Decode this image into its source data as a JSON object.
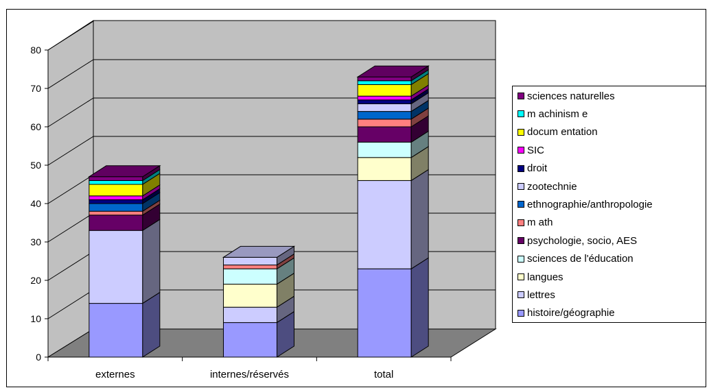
{
  "chart_data": {
    "type": "bar",
    "stacked": true,
    "three_d": true,
    "categories": [
      "externes",
      "internes/réservés",
      "total"
    ],
    "ylim": [
      0,
      80
    ],
    "yticks": [
      "0",
      "10",
      "20",
      "30",
      "40",
      "50",
      "60",
      "70",
      "80"
    ],
    "grid": true,
    "legend_position": "right",
    "series": [
      {
        "name": "histoire/géographie",
        "color": "#9999ff",
        "values": [
          14,
          9,
          23
        ]
      },
      {
        "name": "lettres",
        "color": "#ccccff",
        "values": [
          19,
          4,
          23
        ]
      },
      {
        "name": "langues",
        "color": "#ffffcc",
        "values": [
          0,
          6,
          6
        ]
      },
      {
        "name": "sciences de l'éducation",
        "color": "#ccffff",
        "values": [
          0,
          4,
          4
        ]
      },
      {
        "name": "psychologie, socio, AES",
        "color": "#660066",
        "values": [
          4,
          0,
          4
        ]
      },
      {
        "name": "m ath",
        "color": "#ff8080",
        "values": [
          1,
          1,
          2
        ]
      },
      {
        "name": "ethnographie/anthropologie",
        "color": "#0066cc",
        "values": [
          2,
          0,
          2
        ]
      },
      {
        "name": "zootechnie",
        "color": "#ccccff",
        "values": [
          0,
          2,
          2
        ]
      },
      {
        "name": "droit",
        "color": "#000080",
        "values": [
          1,
          0,
          1
        ]
      },
      {
        "name": "SIC",
        "color": "#ff00ff",
        "values": [
          1,
          0,
          1
        ]
      },
      {
        "name": "docum entation",
        "color": "#ffff00",
        "values": [
          3,
          0,
          3
        ]
      },
      {
        "name": "m achinism e",
        "color": "#00ffff",
        "values": [
          1,
          0,
          1
        ]
      },
      {
        "name": "sciences naturelles",
        "color": "#800080",
        "values": [
          1,
          0,
          1
        ]
      }
    ]
  }
}
